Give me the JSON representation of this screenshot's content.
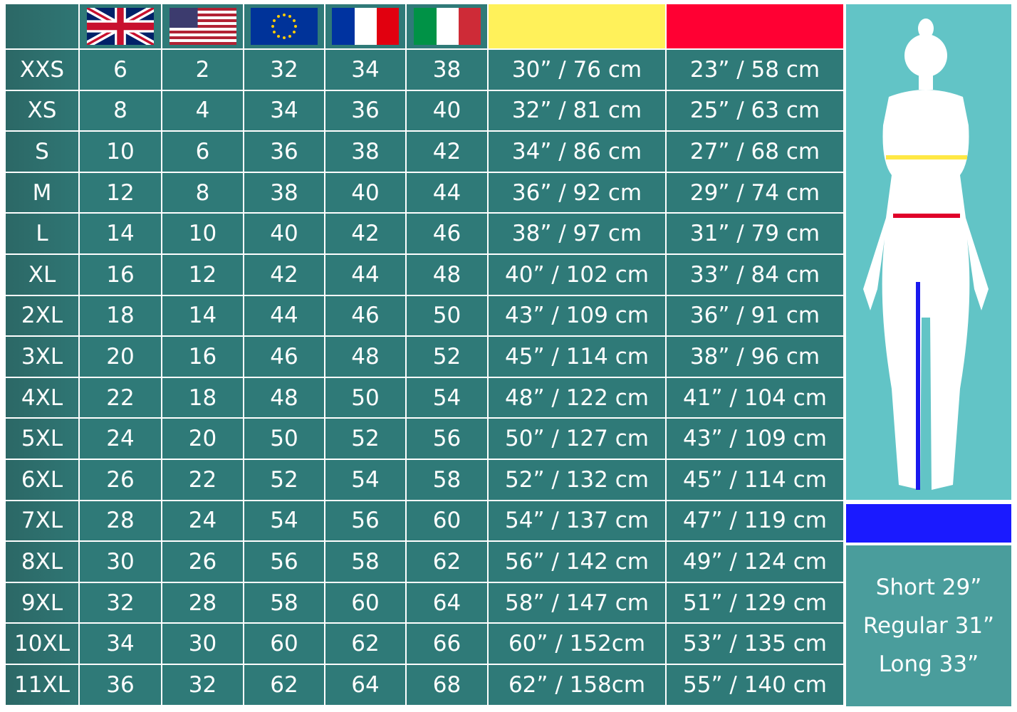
{
  "table": {
    "rows": [
      [
        "XXS",
        "6",
        "2",
        "32",
        "34",
        "38",
        "30” / 76 cm",
        "23” / 58 cm"
      ],
      [
        "XS",
        "8",
        "4",
        "34",
        "36",
        "40",
        "32” / 81 cm",
        "25” / 63 cm"
      ],
      [
        "S",
        "10",
        "6",
        "36",
        "38",
        "42",
        "34” / 86 cm",
        "27” / 68 cm"
      ],
      [
        "M",
        "12",
        "8",
        "38",
        "40",
        "44",
        "36” / 92 cm",
        "29” / 74 cm"
      ],
      [
        "L",
        "14",
        "10",
        "40",
        "42",
        "46",
        "38” / 97 cm",
        "31” / 79 cm"
      ],
      [
        "XL",
        "16",
        "12",
        "42",
        "44",
        "48",
        "40” / 102 cm",
        "33” / 84 cm"
      ],
      [
        "2XL",
        "18",
        "14",
        "44",
        "46",
        "50",
        "43” / 109 cm",
        "36” / 91 cm"
      ],
      [
        "3XL",
        "20",
        "16",
        "46",
        "48",
        "52",
        "45” / 114 cm",
        "38” / 96 cm"
      ],
      [
        "4XL",
        "22",
        "18",
        "48",
        "50",
        "54",
        "48” / 122 cm",
        "41” / 104 cm"
      ],
      [
        "5XL",
        "24",
        "20",
        "50",
        "52",
        "56",
        "50” / 127 cm",
        "43” / 109 cm"
      ],
      [
        "6XL",
        "26",
        "22",
        "52",
        "54",
        "58",
        "52” / 132 cm",
        "45” / 114 cm"
      ],
      [
        "7XL",
        "28",
        "24",
        "54",
        "56",
        "60",
        "54” / 137 cm",
        "47” / 119 cm"
      ],
      [
        "8XL",
        "30",
        "26",
        "56",
        "58",
        "62",
        "56” / 142 cm",
        "49” / 124 cm"
      ],
      [
        "9XL",
        "32",
        "28",
        "58",
        "60",
        "64",
        "58” / 147 cm",
        "51” / 129 cm"
      ],
      [
        "10XL",
        "34",
        "30",
        "60",
        "62",
        "66",
        "60” / 152cm",
        "53” / 135 cm"
      ],
      [
        "11XL",
        "36",
        "32",
        "62",
        "64",
        "68",
        "62” / 158cm",
        "55” / 140 cm"
      ]
    ]
  },
  "inseam": [
    "Short 29”",
    "Regular 31”",
    "Long 33”"
  ]
}
